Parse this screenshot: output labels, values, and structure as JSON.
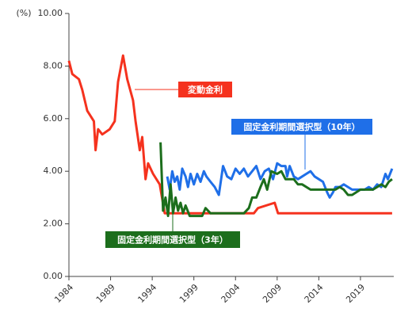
{
  "chart_data": {
    "type": "line",
    "y_unit": "(%)",
    "xlim": [
      1984,
      2023
    ],
    "xticks": [
      1984,
      1989,
      1994,
      1999,
      2004,
      2009,
      2014,
      2019
    ],
    "ylim": [
      0,
      10
    ],
    "yticks": [
      {
        "value": 0,
        "label": "0.00"
      },
      {
        "value": 2,
        "label": "2.00"
      },
      {
        "value": 4,
        "label": "4.00"
      },
      {
        "value": 6,
        "label": "6.00"
      },
      {
        "value": 8,
        "label": "8.00"
      },
      {
        "value": 10,
        "label": "10.00"
      }
    ],
    "series": [
      {
        "name": "変動金利",
        "color": "#f5321e",
        "x": [
          1984,
          1984.4,
          1984.4,
          1985.2,
          1985.2,
          1985.6,
          1985.6,
          1986.2,
          1986.2,
          1987,
          1987,
          1987.2,
          1987.2,
          1987.5,
          1987.5,
          1988,
          1988,
          1988.9,
          1988.9,
          1989.5,
          1989.5,
          1989.9,
          1989.9,
          1990.5,
          1990.5,
          1991,
          1991,
          1991.7,
          1991.7,
          1992,
          1992,
          1992.5,
          1992.5,
          1992.8,
          1992.8,
          1993.2,
          1993.2,
          1993.5,
          1993.5,
          1994.1,
          1994.1,
          1994.9,
          1994.9,
          1995.5,
          1995.5,
          2006.2,
          2006.2,
          2006.7,
          2006.7,
          2008.7,
          2008.7,
          2009.1,
          2009.1,
          2022.8
        ],
        "values": [
          8.2,
          7.7,
          7.7,
          7.5,
          7.5,
          7.1,
          7.1,
          6.3,
          6.3,
          5.9,
          5.9,
          4.8,
          4.8,
          5.6,
          5.6,
          5.4,
          5.4,
          5.6,
          5.6,
          5.9,
          5.9,
          7.4,
          7.4,
          8.4,
          8.4,
          7.5,
          7.5,
          6.7,
          6.7,
          5.9,
          5.9,
          4.8,
          4.8,
          5.3,
          5.3,
          3.7,
          3.7,
          4.3,
          4.3,
          3.9,
          3.9,
          3.5,
          3.5,
          2.4,
          2.4,
          2.4,
          2.4,
          2.6,
          2.6,
          2.8,
          2.8,
          2.4,
          2.4,
          2.4
        ]
      },
      {
        "name": "固定金利期間選択型（10年）",
        "color": "#1f6fe8",
        "x": [
          1995.8,
          1996.1,
          1996.4,
          1996.7,
          1997,
          1997.3,
          1997.6,
          1998,
          1998.3,
          1998.6,
          1999,
          1999.4,
          1999.8,
          2000.2,
          2000.5,
          2001,
          2001.5,
          2002,
          2002.5,
          2003,
          2003.5,
          2004,
          2004.5,
          2005,
          2005.5,
          2006,
          2006.5,
          2007,
          2007.5,
          2008,
          2008.5,
          2009,
          2009.5,
          2010,
          2010.2,
          2010.5,
          2011,
          2011.5,
          2012,
          2012.5,
          2013,
          2013.5,
          2014,
          2014.5,
          2015,
          2015.3,
          2015.7,
          2016,
          2016.5,
          2017,
          2017.5,
          2018,
          2018.5,
          2019,
          2019.5,
          2020,
          2020.5,
          2021,
          2021.5,
          2022,
          2022.3,
          2022.8
        ],
        "values": [
          3.8,
          3.3,
          4.0,
          3.6,
          3.8,
          3.3,
          4.1,
          3.8,
          3.4,
          3.9,
          3.5,
          3.9,
          3.6,
          4.0,
          3.8,
          3.6,
          3.4,
          3.1,
          4.2,
          3.8,
          3.7,
          4.1,
          3.9,
          4.1,
          3.8,
          4.0,
          4.2,
          3.7,
          4.0,
          4.1,
          3.7,
          4.3,
          4.2,
          4.2,
          3.8,
          4.2,
          3.8,
          3.7,
          3.8,
          3.9,
          4.0,
          3.8,
          3.7,
          3.6,
          3.2,
          3.0,
          3.2,
          3.4,
          3.4,
          3.5,
          3.4,
          3.3,
          3.3,
          3.3,
          3.3,
          3.4,
          3.3,
          3.5,
          3.4,
          3.9,
          3.7,
          4.1
        ]
      },
      {
        "name": "固定金利期間選択型（3年）",
        "color": "#1c6e1c",
        "x": [
          1995,
          1995.3,
          1995.6,
          1995.9,
          1996.2,
          1996.5,
          1996.8,
          1997.1,
          1997.4,
          1997.7,
          1998,
          1998.5,
          1999,
          1999.5,
          2000,
          2000.4,
          2001,
          2002,
          2003,
          2004,
          2005,
          2005.6,
          2006,
          2006.5,
          2007,
          2007.4,
          2007.8,
          2008.3,
          2009,
          2009.5,
          2010,
          2010.5,
          2011,
          2011.5,
          2012,
          2013,
          2014,
          2014.5,
          2015,
          2016,
          2016.5,
          2017,
          2017.5,
          2018,
          2019,
          2020,
          2020.5,
          2021,
          2021.5,
          2022,
          2022.4,
          2022.8
        ],
        "values": [
          5.1,
          2.5,
          3.0,
          2.3,
          3.5,
          2.4,
          3.0,
          2.5,
          2.8,
          2.4,
          2.7,
          2.3,
          2.3,
          2.3,
          2.3,
          2.6,
          2.4,
          2.4,
          2.4,
          2.4,
          2.4,
          2.6,
          3.0,
          3.0,
          3.4,
          3.7,
          3.3,
          4.0,
          3.9,
          4.0,
          3.7,
          3.7,
          3.7,
          3.5,
          3.5,
          3.3,
          3.3,
          3.3,
          3.3,
          3.3,
          3.4,
          3.3,
          3.1,
          3.1,
          3.3,
          3.3,
          3.3,
          3.4,
          3.5,
          3.4,
          3.6,
          3.7
        ]
      }
    ]
  }
}
